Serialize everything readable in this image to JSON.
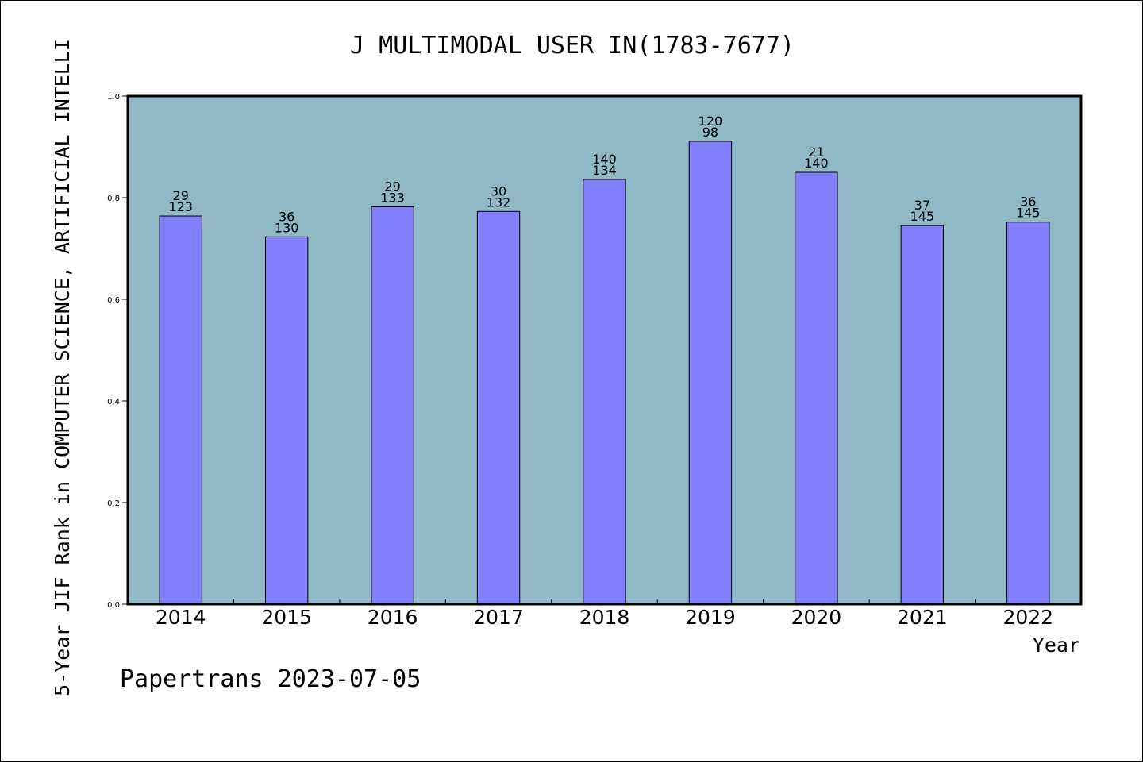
{
  "chart_data": {
    "type": "bar",
    "title": "J MULTIMODAL USER IN(1783-7677)",
    "xlabel": "Year",
    "ylabel": "5-Year JIF Rank in COMPUTER SCIENCE, ARTIFICIAL INTELLI",
    "categories": [
      "2014",
      "2015",
      "2016",
      "2017",
      "2018",
      "2019",
      "2020",
      "2021",
      "2022"
    ],
    "values": [
      0.764,
      0.723,
      0.782,
      0.773,
      0.836,
      0.911,
      0.85,
      0.745,
      0.752
    ],
    "labels_top": [
      "29",
      "36",
      "29",
      "30",
      "140",
      "120",
      "21",
      "37",
      "36"
    ],
    "labels_bottom": [
      "123",
      "130",
      "133",
      "132",
      "134",
      "98",
      "140",
      "145",
      "145"
    ],
    "ylim": [
      0,
      1.0
    ],
    "yticks": [
      "0.0",
      "0.2",
      "0.4",
      "0.6",
      "0.8",
      "1.0"
    ],
    "grid": false,
    "colors": {
      "plot_bg": "#91b8c6",
      "bar": "#8080ff",
      "bar_edge": "#000000"
    }
  },
  "footer": {
    "watermark": "Papertrans 2023-07-05"
  }
}
